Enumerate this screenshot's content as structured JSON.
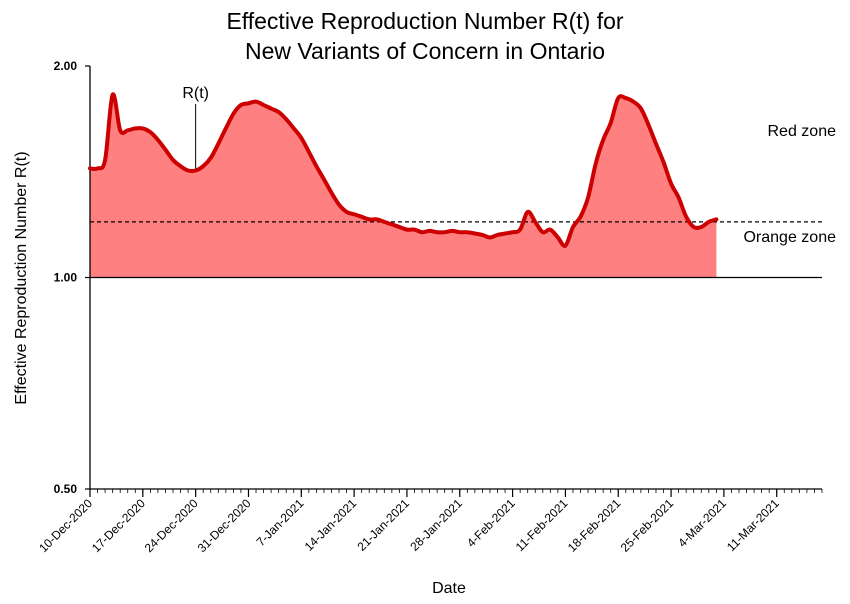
{
  "chart_data": {
    "type": "area",
    "title_line1": "Effective Reproduction Number R(t) for",
    "title_line2": "New Variants of Concern in Ontario",
    "xlabel": "Date",
    "ylabel": "Effective Reproduction Number R(t)",
    "y_scale": "log",
    "ylim": [
      0.5,
      2.0
    ],
    "yticks": [
      "0.50",
      "1.00",
      "2.00"
    ],
    "xlim": [
      "2020-12-10",
      "2021-03-17"
    ],
    "xticks": [
      "10-Dec-2020",
      "17-Dec-2020",
      "24-Dec-2020",
      "31-Dec-2020",
      "7-Jan-2021",
      "14-Jan-2021",
      "21-Jan-2021",
      "28-Jan-2021",
      "4-Feb-2021",
      "11-Feb-2021",
      "18-Feb-2021",
      "25-Feb-2021",
      "4-Mar-2021",
      "11-Mar-2021"
    ],
    "threshold": 1.2,
    "zones": {
      "upper": "Red zone",
      "lower": "Orange zone"
    },
    "annotation": {
      "text": "R(t)",
      "x": "2020-12-24",
      "y": 1.42
    },
    "series": [
      {
        "color": "#cc0000",
        "fill": "#ff8080",
        "x": [
          "2020-12-10",
          "2020-12-11",
          "2020-12-12",
          "2020-12-13",
          "2020-12-14",
          "2020-12-15",
          "2020-12-16",
          "2020-12-17",
          "2020-12-18",
          "2020-12-19",
          "2020-12-20",
          "2020-12-21",
          "2020-12-22",
          "2020-12-23",
          "2020-12-24",
          "2020-12-25",
          "2020-12-26",
          "2020-12-27",
          "2020-12-28",
          "2020-12-29",
          "2020-12-30",
          "2020-12-31",
          "2021-01-01",
          "2021-01-02",
          "2021-01-03",
          "2021-01-04",
          "2021-01-05",
          "2021-01-06",
          "2021-01-07",
          "2021-01-08",
          "2021-01-09",
          "2021-01-10",
          "2021-01-11",
          "2021-01-12",
          "2021-01-13",
          "2021-01-14",
          "2021-01-15",
          "2021-01-16",
          "2021-01-17",
          "2021-01-18",
          "2021-01-19",
          "2021-01-20",
          "2021-01-21",
          "2021-01-22",
          "2021-01-23",
          "2021-01-24",
          "2021-01-25",
          "2021-01-26",
          "2021-01-27",
          "2021-01-28",
          "2021-01-29",
          "2021-01-30",
          "2021-01-31",
          "2021-02-01",
          "2021-02-02",
          "2021-02-03",
          "2021-02-04",
          "2021-02-05",
          "2021-02-06",
          "2021-02-07",
          "2021-02-08",
          "2021-02-09",
          "2021-02-10",
          "2021-02-11",
          "2021-02-12",
          "2021-02-13",
          "2021-02-14",
          "2021-02-15",
          "2021-02-16",
          "2021-02-17",
          "2021-02-18",
          "2021-02-19",
          "2021-02-20",
          "2021-02-21",
          "2021-02-22",
          "2021-02-23",
          "2021-02-24",
          "2021-02-25",
          "2021-02-26",
          "2021-02-27",
          "2021-02-28",
          "2021-03-01",
          "2021-03-02",
          "2021-03-03"
        ],
        "values": [
          1.43,
          1.43,
          1.47,
          1.82,
          1.62,
          1.62,
          1.63,
          1.63,
          1.61,
          1.57,
          1.52,
          1.47,
          1.44,
          1.42,
          1.42,
          1.44,
          1.48,
          1.55,
          1.63,
          1.71,
          1.76,
          1.77,
          1.78,
          1.76,
          1.74,
          1.72,
          1.68,
          1.63,
          1.58,
          1.51,
          1.44,
          1.38,
          1.32,
          1.27,
          1.24,
          1.23,
          1.22,
          1.21,
          1.21,
          1.2,
          1.19,
          1.18,
          1.17,
          1.17,
          1.16,
          1.165,
          1.16,
          1.16,
          1.165,
          1.16,
          1.16,
          1.155,
          1.15,
          1.14,
          1.15,
          1.155,
          1.16,
          1.17,
          1.24,
          1.2,
          1.16,
          1.17,
          1.14,
          1.11,
          1.18,
          1.22,
          1.3,
          1.45,
          1.57,
          1.66,
          1.8,
          1.8,
          1.78,
          1.74,
          1.65,
          1.55,
          1.46,
          1.36,
          1.3,
          1.22,
          1.18,
          1.18,
          1.2,
          1.21
        ]
      }
    ]
  }
}
